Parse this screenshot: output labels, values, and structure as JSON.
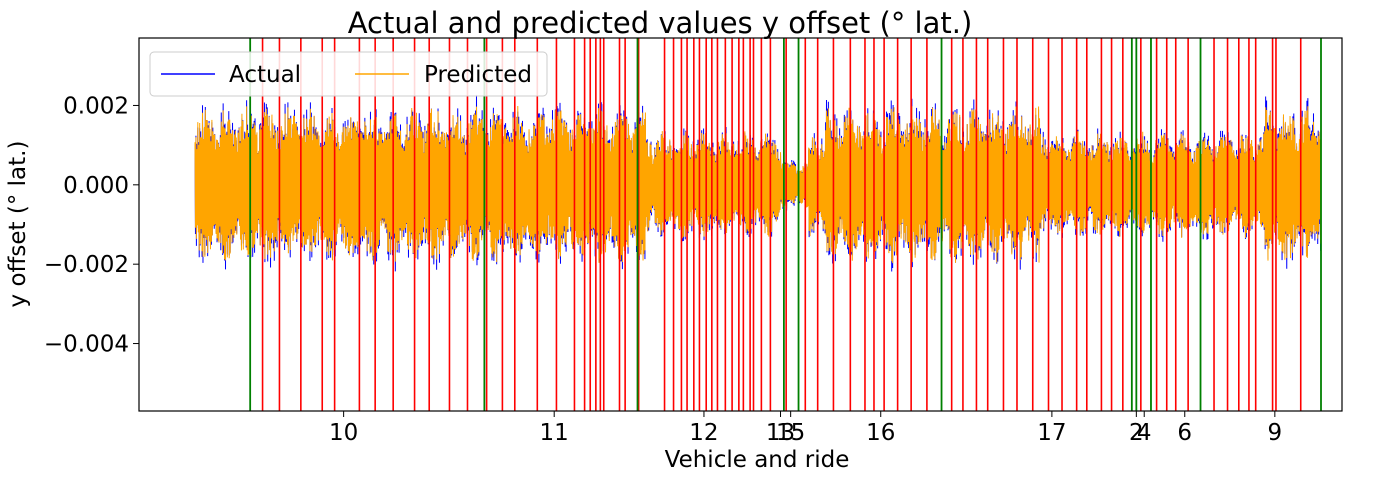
{
  "chart_data": {
    "type": "line",
    "title": "Actual and predicted values y offset (° lat.)",
    "xlabel": "Vehicle and ride",
    "ylabel": "y offset (° lat.)",
    "ylim": [
      -0.0057,
      0.0037
    ],
    "y_ticks": [
      {
        "value": 0.002,
        "label": "0.002"
      },
      {
        "value": 0.0,
        "label": "0.000"
      },
      {
        "value": -0.002,
        "label": "−0.002"
      },
      {
        "value": -0.004,
        "label": "−0.004"
      }
    ],
    "xlim": [
      0,
      100
    ],
    "x_ticks": [
      {
        "value": 13.2,
        "label": "10"
      },
      {
        "value": 31.9,
        "label": "11"
      },
      {
        "value": 45.2,
        "label": "12"
      },
      {
        "value": 52.0,
        "label": "13"
      },
      {
        "value": 52.9,
        "label": "15"
      },
      {
        "value": 60.9,
        "label": "16"
      },
      {
        "value": 76.1,
        "label": "17"
      },
      {
        "value": 83.6,
        "label": "2"
      },
      {
        "value": 84.3,
        "label": "4"
      },
      {
        "value": 87.9,
        "label": "6"
      },
      {
        "value": 95.9,
        "label": "9"
      }
    ],
    "legend": {
      "placement": "top-left",
      "columns": 2
    },
    "series": [
      {
        "name": "Actual",
        "color": "#0000ff"
      },
      {
        "name": "Predicted",
        "color": "#ffa500"
      }
    ],
    "vertical_markers": {
      "green_color": "#008000",
      "red_color": "#ff0000",
      "green": [
        4.9,
        25.7,
        39.3,
        52.3,
        53.6,
        66.3,
        83.2,
        83.6,
        84.9,
        89.3,
        100
      ],
      "red": [
        6.0,
        7.5,
        9.4,
        11.3,
        12.4,
        14.6,
        16.0,
        17.6,
        19.5,
        20.8,
        22.6,
        24.2,
        25.9,
        27.3,
        28.4,
        30.4,
        32.1,
        33.7,
        34.6,
        35.1,
        35.6,
        36.0,
        36.3,
        37.7,
        38.2,
        39.4,
        41.7,
        42.5,
        43.2,
        43.7,
        44.3,
        44.8,
        45.4,
        45.9,
        46.4,
        47.1,
        47.7,
        48.3,
        48.7,
        49.3,
        49.6,
        50.3,
        51.1,
        52.5,
        54.2,
        55.3,
        56.7,
        58.2,
        59.5,
        60.3,
        61.2,
        62.4,
        63.6,
        65.0,
        67.2,
        68.2,
        69.4,
        70.4,
        71.8,
        73.0,
        74.4,
        75.8,
        77.0,
        78.3,
        79.2,
        80.5,
        81.4,
        82.4,
        84.0,
        85.4,
        86.3,
        87.1,
        88.2,
        90.5,
        91.7,
        92.7,
        93.6,
        94.2,
        95.7,
        96.0,
        98.2
      ]
    }
  }
}
